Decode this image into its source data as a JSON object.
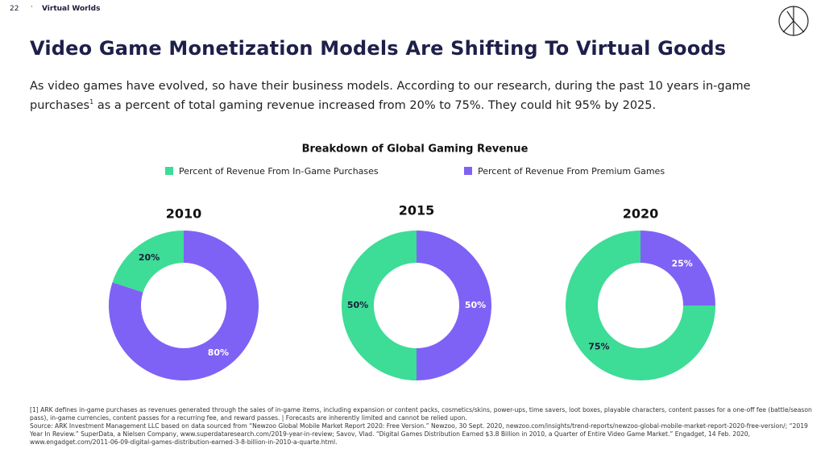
{
  "page_number": "22",
  "section": "Virtual Worlds",
  "title": "Video Game Monetization Models Are Shifting To Virtual Goods",
  "intro": [
    "As video games have evolved, so have their business models. According to our research, during the past 10 years in-game purchases",
    "1",
    " as a percent of total gaming revenue increased from 20% to 75%. They could hit 95% by 2025."
  ],
  "figure_title": "Breakdown of Global Gaming Revenue",
  "chart_data": [
    {
      "type": "donut",
      "title": "2010",
      "categories": [
        "Percent of Revenue From In-Game Purchases",
        "Percent of Revenue From Premium Games"
      ],
      "values": [
        20,
        80
      ],
      "value_labels": [
        "20%",
        "80%"
      ],
      "colors": [
        "#3ddc97",
        "#7e62f5"
      ]
    },
    {
      "type": "donut",
      "title": "2015",
      "categories": [
        "Percent of Revenue From In-Game Purchases",
        "Percent of Revenue From Premium Games"
      ],
      "values": [
        50,
        50
      ],
      "value_labels": [
        "50%",
        "50%"
      ],
      "colors": [
        "#3ddc97",
        "#7e62f5"
      ]
    },
    {
      "type": "donut",
      "title": "2020",
      "categories": [
        "Percent of Revenue From In-Game Purchases",
        "Percent of Revenue From Premium Games"
      ],
      "values": [
        75,
        25
      ],
      "value_labels": [
        "75%",
        "25%"
      ],
      "colors": [
        "#3ddc97",
        "#7e62f5"
      ]
    }
  ],
  "footnotes": [
    "[1] ARK defines in-game purchases as revenues generated through the sales of in-game items, including expansion or content packs, cosmetics/skins, power-ups, time savers, loot boxes, playable characters, content passes for a one-off fee (battle/season pass), in-game currencies, content passes for a recurring fee, and reward passes. | Forecasts are inherently limited and cannot be relied upon.",
    "Source: ARK Investment Management LLC based on data sourced from “Newzoo Global Mobile Market Report 2020: Free Version.” Newzoo, 30 Sept. 2020, newzoo.com/insights/trend-reports/newzoo-global-mobile-market-report-2020-free-version/; “2019 Year In Review.” SuperData, a Nielsen Company, www.superdataresearch.com/2019-year-in-review; Savov, Vlad. “Digital Games Distribution Earned $3.8 Billion in 2010, a Quarter of Entire Video Game Market.” Engadget, 14 Feb. 2020, www.engadget.com/2011-06-09-digital-games-distribution-earned-3-8-billion-in-2010-a-quarte.html."
  ]
}
